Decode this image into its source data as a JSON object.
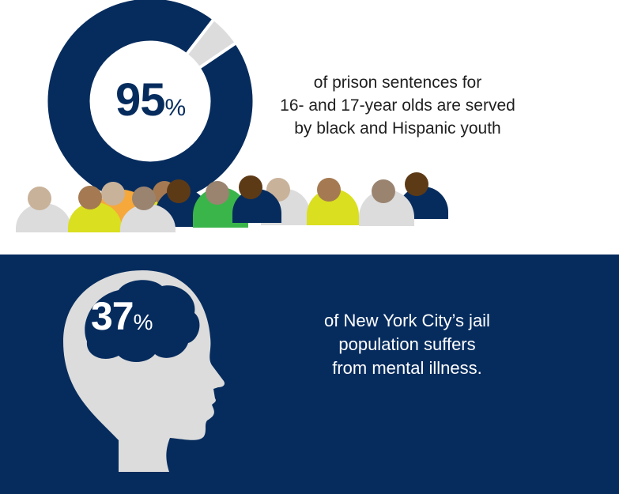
{
  "top_panel": {
    "percent_value": "95",
    "percent_sign": "%",
    "percent_fraction": 0.95,
    "ring_color": "#062c5e",
    "ring_remainder_color": "#dcdcdc",
    "caption_lines": [
      "of prison sentences for",
      "16- and 17-year olds are served",
      "by black and Hispanic youth"
    ]
  },
  "bottom_panel": {
    "background_color": "#062c5e",
    "icon": "human-head-profile-icon",
    "percent_value": "37",
    "percent_sign": "%",
    "caption_lines": [
      "of New York City’s jail",
      "population suffers",
      "from mental illness."
    ]
  },
  "people_icon": "person-silhouette-icon",
  "people_colors": {
    "skin_tones": [
      "#c9b29a",
      "#a57a52",
      "#9a8470",
      "#5d3a16"
    ],
    "shirts": [
      "#dcdcdc",
      "#dadf1f",
      "#f6a83b",
      "#062c5e",
      "#3ab54a"
    ]
  }
}
